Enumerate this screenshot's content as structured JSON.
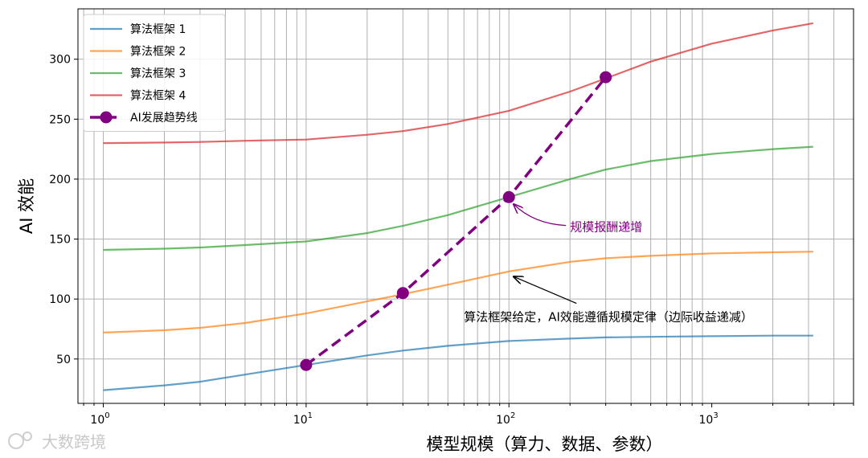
{
  "chart_data": {
    "type": "line",
    "xlabel": "模型规模（算力、数据、参数）",
    "ylabel": "AI 效能",
    "x_scale": "log",
    "xlim": [
      0.75,
      5000
    ],
    "ylim": [
      13,
      342
    ],
    "x_ticks": [
      1,
      10,
      100,
      1000
    ],
    "x_tick_labels": [
      {
        "base": "10",
        "exp": "0"
      },
      {
        "base": "10",
        "exp": "1"
      },
      {
        "base": "10",
        "exp": "2"
      },
      {
        "base": "10",
        "exp": "3"
      }
    ],
    "y_ticks": [
      50,
      100,
      150,
      200,
      250,
      300
    ],
    "grid": "both (major and minor)",
    "legend_position": "top-left",
    "series": [
      {
        "name": "算法框架 1",
        "color": "#1f77b4",
        "style": "solid",
        "x": [
          1,
          2,
          3,
          5,
          10,
          20,
          30,
          50,
          100,
          200,
          300,
          500,
          1000,
          2000,
          3162
        ],
        "y": [
          24,
          28,
          31,
          37,
          45,
          53,
          57,
          61,
          65,
          67,
          68,
          68.5,
          69,
          69.5,
          69.5
        ]
      },
      {
        "name": "算法框架 2",
        "color": "#ff7f0e",
        "style": "solid",
        "x": [
          1,
          2,
          3,
          5,
          10,
          20,
          30,
          50,
          100,
          200,
          300,
          500,
          1000,
          2000,
          3162
        ],
        "y": [
          72,
          74,
          76,
          80,
          88,
          98,
          104,
          112,
          123,
          131,
          134,
          136,
          138,
          139,
          139.5
        ]
      },
      {
        "name": "算法框架 3",
        "color": "#2ca02c",
        "style": "solid",
        "x": [
          1,
          2,
          3,
          5,
          10,
          20,
          30,
          50,
          100,
          200,
          300,
          500,
          1000,
          2000,
          3162
        ],
        "y": [
          141,
          142,
          143,
          145,
          148,
          155,
          161,
          170,
          185,
          200,
          208,
          215,
          221,
          225,
          227
        ]
      },
      {
        "name": "算法框架 4",
        "color": "#d62728",
        "style": "solid",
        "x": [
          1,
          2,
          3,
          5,
          10,
          20,
          30,
          50,
          100,
          200,
          300,
          500,
          1000,
          2000,
          3162
        ],
        "y": [
          230,
          230.5,
          231,
          232,
          233,
          237,
          240,
          246,
          257,
          273,
          284,
          298,
          313,
          324,
          330
        ]
      },
      {
        "name": "AI发展趋势线",
        "color": "#800080",
        "style": "dashed-markers",
        "x": [
          10,
          30,
          100,
          300
        ],
        "y": [
          45,
          105,
          185,
          285
        ]
      }
    ],
    "annotations": [
      {
        "text": "规模报酬递增",
        "color": "#800080",
        "point": [
          100,
          185
        ],
        "text_at": [
          200,
          160
        ]
      },
      {
        "text": "算法框架给定，AI效能遵循规模定律（边际收益递减）",
        "color": "#000000",
        "point": [
          100,
          120
        ],
        "text_at": [
          60,
          85
        ]
      }
    ]
  },
  "watermark": {
    "text": "大数跨境"
  }
}
